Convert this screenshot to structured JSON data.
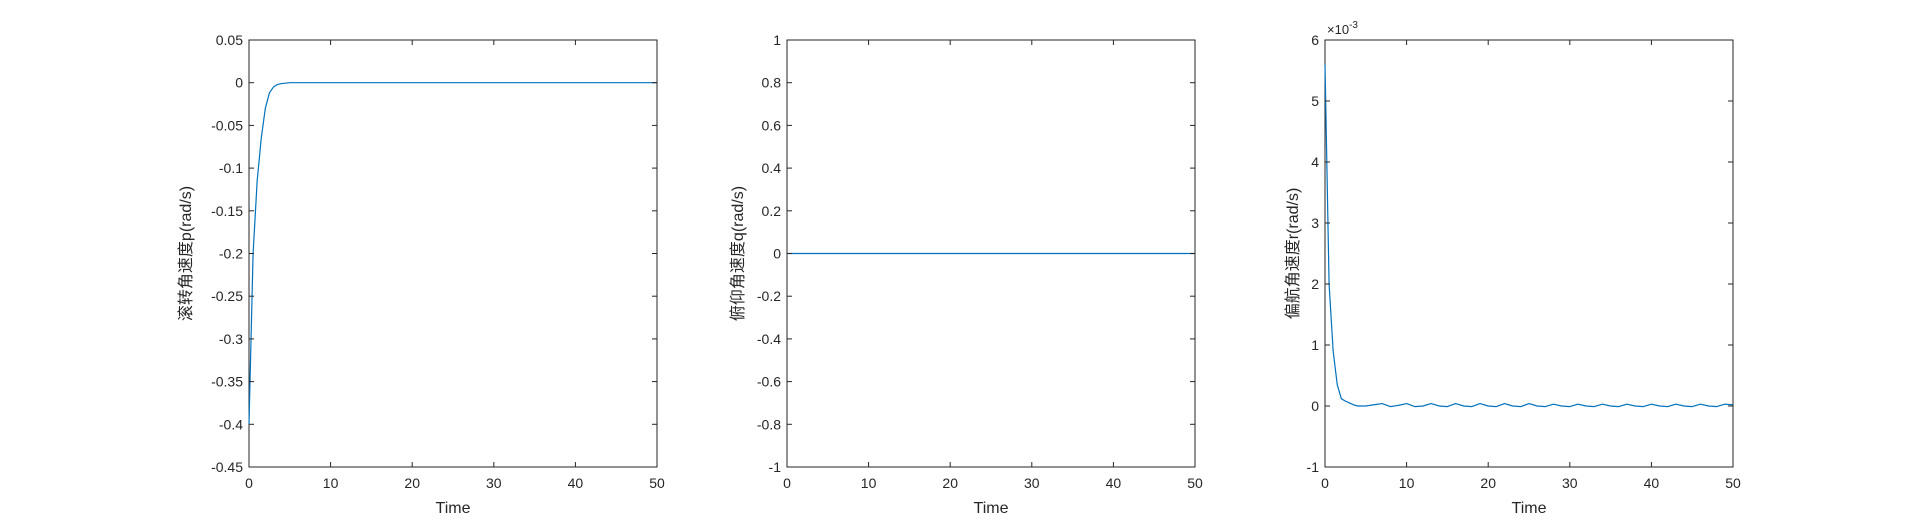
{
  "figure": {
    "background": "#ffffff",
    "axes_color": "#262626",
    "line_color": "#0072BD"
  },
  "chart_data": [
    {
      "type": "line",
      "xlabel": "Time",
      "ylabel": "滚转角速度p(rad/s)",
      "xlim": [
        0,
        50
      ],
      "ylim": [
        -0.45,
        0.05
      ],
      "xticks": [
        0,
        10,
        20,
        30,
        40,
        50
      ],
      "xtick_labels": [
        "0",
        "10",
        "20",
        "30",
        "40",
        "50"
      ],
      "yticks": [
        -0.45,
        -0.4,
        -0.35,
        -0.3,
        -0.25,
        -0.2,
        -0.15,
        -0.1,
        -0.05,
        0,
        0.05
      ],
      "ytick_labels": [
        "-0.45",
        "-0.4",
        "-0.35",
        "-0.3",
        "-0.25",
        "-0.2",
        "-0.15",
        "-0.1",
        "-0.05",
        "0",
        "0.05"
      ],
      "exponent_label": "",
      "grid": false,
      "series": [
        {
          "x": [
            0,
            0.5,
            1,
            1.5,
            2,
            2.5,
            3,
            3.5,
            4,
            5,
            6,
            8,
            10,
            20,
            30,
            40,
            50
          ],
          "y": [
            -0.4,
            -0.2,
            -0.115,
            -0.065,
            -0.03,
            -0.012,
            -0.005,
            -0.002,
            -0.001,
            0,
            0,
            0,
            0,
            0,
            0,
            0,
            0
          ]
        }
      ]
    },
    {
      "type": "line",
      "xlabel": "Time",
      "ylabel": "俯仰角速度q(rad/s)",
      "xlim": [
        0,
        50
      ],
      "ylim": [
        -1,
        1
      ],
      "xticks": [
        0,
        10,
        20,
        30,
        40,
        50
      ],
      "xtick_labels": [
        "0",
        "10",
        "20",
        "30",
        "40",
        "50"
      ],
      "yticks": [
        -1,
        -0.8,
        -0.6,
        -0.4,
        -0.2,
        0,
        0.2,
        0.4,
        0.6,
        0.8,
        1
      ],
      "ytick_labels": [
        "-1",
        "-0.8",
        "-0.6",
        "-0.4",
        "-0.2",
        "0",
        "0.2",
        "0.4",
        "0.6",
        "0.8",
        "1"
      ],
      "exponent_label": "",
      "grid": false,
      "series": [
        {
          "x": [
            0,
            50
          ],
          "y": [
            0,
            0
          ]
        }
      ]
    },
    {
      "type": "line",
      "xlabel": "Time",
      "ylabel": "偏航角速度r(rad/s)",
      "xlim": [
        0,
        50
      ],
      "ylim": [
        -1,
        6
      ],
      "y_scale_factor": "×10^-3",
      "xticks": [
        0,
        10,
        20,
        30,
        40,
        50
      ],
      "xtick_labels": [
        "0",
        "10",
        "20",
        "30",
        "40",
        "50"
      ],
      "yticks": [
        -1,
        0,
        1,
        2,
        3,
        4,
        5,
        6
      ],
      "ytick_labels": [
        "-1",
        "0",
        "1",
        "2",
        "3",
        "4",
        "5",
        "6"
      ],
      "exponent_label": "×10",
      "exponent_power": "-3",
      "grid": false,
      "series": [
        {
          "x": [
            0,
            0.5,
            1,
            1.5,
            2,
            2.5,
            3,
            3.5,
            4,
            5,
            6,
            7,
            8,
            9,
            10,
            11,
            12,
            13,
            14,
            15,
            16,
            17,
            18,
            19,
            20,
            21,
            22,
            23,
            24,
            25,
            26,
            27,
            28,
            29,
            30,
            31,
            32,
            33,
            34,
            35,
            36,
            37,
            38,
            39,
            40,
            41,
            42,
            43,
            44,
            45,
            46,
            47,
            48,
            49,
            50
          ],
          "y": [
            5.6,
            2.0,
            0.9,
            0.35,
            0.12,
            0.08,
            0.05,
            0.02,
            0.0,
            0.0,
            0.02,
            0.04,
            -0.01,
            0.01,
            0.04,
            -0.01,
            0.0,
            0.04,
            0.0,
            -0.01,
            0.04,
            0.0,
            -0.01,
            0.04,
            0.0,
            -0.01,
            0.04,
            0.0,
            -0.01,
            0.04,
            0.0,
            -0.01,
            0.03,
            0.0,
            -0.01,
            0.03,
            0.0,
            -0.01,
            0.03,
            0.0,
            -0.01,
            0.03,
            0.0,
            -0.01,
            0.03,
            0.0,
            -0.01,
            0.03,
            0.0,
            -0.01,
            0.03,
            0.0,
            -0.01,
            0.03,
            0.02
          ]
        }
      ]
    }
  ]
}
